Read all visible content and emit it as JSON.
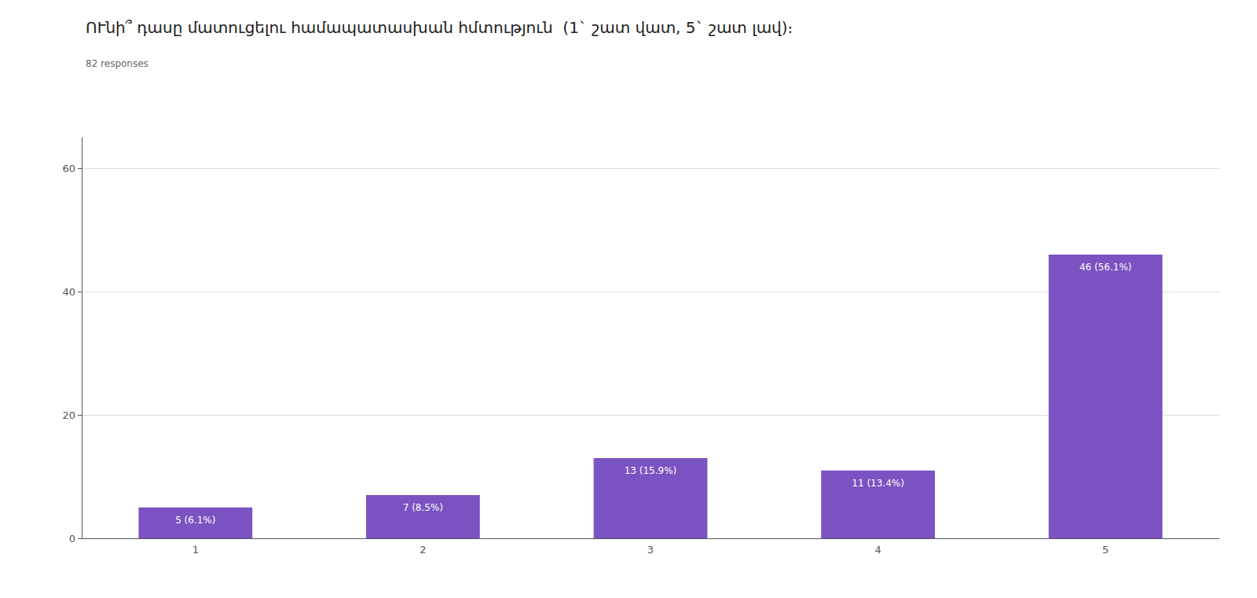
{
  "chart_data": {
    "type": "bar",
    "title": "ՈՒնի՞ դասը մատուցելու համապատասխան հմտություն  (1` շատ վատ, 5` շատ լավ)։      ",
    "subtitle": "82 responses",
    "categories": [
      "1",
      "2",
      "3",
      "4",
      "5"
    ],
    "values": [
      5,
      7,
      13,
      11,
      46
    ],
    "value_labels": [
      "5 (6.1%)",
      "7 (8.5%)",
      "13 (15.9%)",
      "11 (13.4%)",
      "46 (56.1%)"
    ],
    "data_labels": true,
    "color": "#7B52C1",
    "ylim": [
      0,
      65
    ],
    "yticks": [
      0,
      20,
      40,
      60
    ],
    "grid": true
  }
}
